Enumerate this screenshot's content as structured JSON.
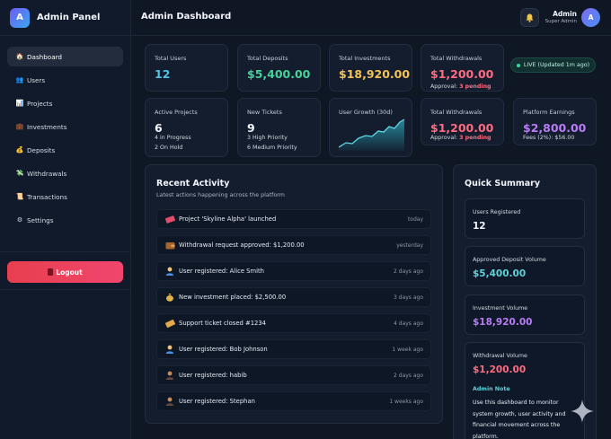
{
  "brand": {
    "logo_letter": "A",
    "title": "Admin Panel"
  },
  "sidebar": {
    "items": [
      {
        "label": "Dashboard",
        "icon": "🏠"
      },
      {
        "label": "Users",
        "icon": "👥"
      },
      {
        "label": "Projects",
        "icon": "📊"
      },
      {
        "label": "Investments",
        "icon": "💼"
      },
      {
        "label": "Deposits",
        "icon": "💰"
      },
      {
        "label": "Withdrawals",
        "icon": "💸"
      },
      {
        "label": "Transactions",
        "icon": "📜"
      },
      {
        "label": "Settings",
        "icon": "⚙"
      }
    ],
    "logout_label": "Logout"
  },
  "header": {
    "title": "Admin Dashboard",
    "user_name": "Admin",
    "user_role": "Super Admin",
    "avatar_letter": "A"
  },
  "stats_row1": [
    {
      "label": "Total Users",
      "value": "12",
      "color": "#4fc3e8"
    },
    {
      "label": "Total Deposits",
      "value": "$5,400.00",
      "color": "#46d39a"
    },
    {
      "label": "Total Investments",
      "value": "$18,920.00",
      "color": "#f5c25a"
    },
    {
      "label": "Total Withdrawals",
      "value": "$1,200.00",
      "color": "#ff6b80",
      "sub_prefix": "Approval:",
      "sub_value": "3 pending"
    }
  ],
  "live_badge": "LIVE (Updated 1m ago)",
  "stats_row2": {
    "active_projects": {
      "label": "Active Projects",
      "value": "6",
      "line1": "4 in Progress",
      "line2": "2 On Hold"
    },
    "new_tickets": {
      "label": "New Tickets",
      "value": "9",
      "line1": "3 High Priority",
      "line2": "6 Medium Priority"
    },
    "user_growth": {
      "label": "User Growth (30d)"
    },
    "withdrawals": {
      "label": "Total Withdrawals",
      "value": "$1,200.00",
      "sub_prefix": "Approval:",
      "sub_value": "3 pending"
    },
    "earnings": {
      "label": "Platform Earnings",
      "value": "$2,800.00",
      "sub": "Fees (2%): $56.00"
    }
  },
  "colors": {
    "accent_cyan": "#4fc3e8",
    "accent_green": "#46d39a",
    "accent_gold": "#f5c25a",
    "accent_red": "#ff6b80",
    "accent_purple": "#b87cf5"
  },
  "recent_activity": {
    "title": "Recent Activity",
    "subtitle": "Latest actions happening across the platform",
    "rows": [
      {
        "icon": "ticket-icon",
        "text": "Project 'Skyline Alpha' launched",
        "time": "today"
      },
      {
        "icon": "wallet-icon",
        "text": "Withdrawal request approved: $1,200.00",
        "time": "yesterday"
      },
      {
        "icon": "user-icon",
        "text": "User registered: Alice Smith",
        "time": "2 days ago"
      },
      {
        "icon": "money-bag-icon",
        "text": "New investment placed: $2,500.00",
        "time": "3 days ago"
      },
      {
        "icon": "support-ticket-icon",
        "text": "Support ticket closed #1234",
        "time": "4 days ago"
      },
      {
        "icon": "user-icon",
        "text": "User registered: Bob Johnson",
        "time": "1 week ago"
      },
      {
        "icon": "user-icon",
        "text": "User registered: habib",
        "time": "2 days ago"
      },
      {
        "icon": "user-icon",
        "text": "User registered: Stephan",
        "time": "1 weeks ago"
      }
    ]
  },
  "quick_summary": {
    "title": "Quick Summary",
    "items": [
      {
        "label": "Users Registered",
        "value": "12",
        "color": "#f2f5fb"
      },
      {
        "label": "Approved Deposit Volume",
        "value": "$5,400.00",
        "color": "#5fd2d8"
      },
      {
        "label": "Investment Volume",
        "value": "$18,920.00",
        "color": "#b87cf5"
      },
      {
        "label": "Withdrawal Volume",
        "value": "$1,200.00",
        "color": "#ff6b80"
      }
    ],
    "note_title": "Admin Note",
    "note_text": "Use this dashboard to monitor system growth, user activity and financial movement across the platform."
  }
}
